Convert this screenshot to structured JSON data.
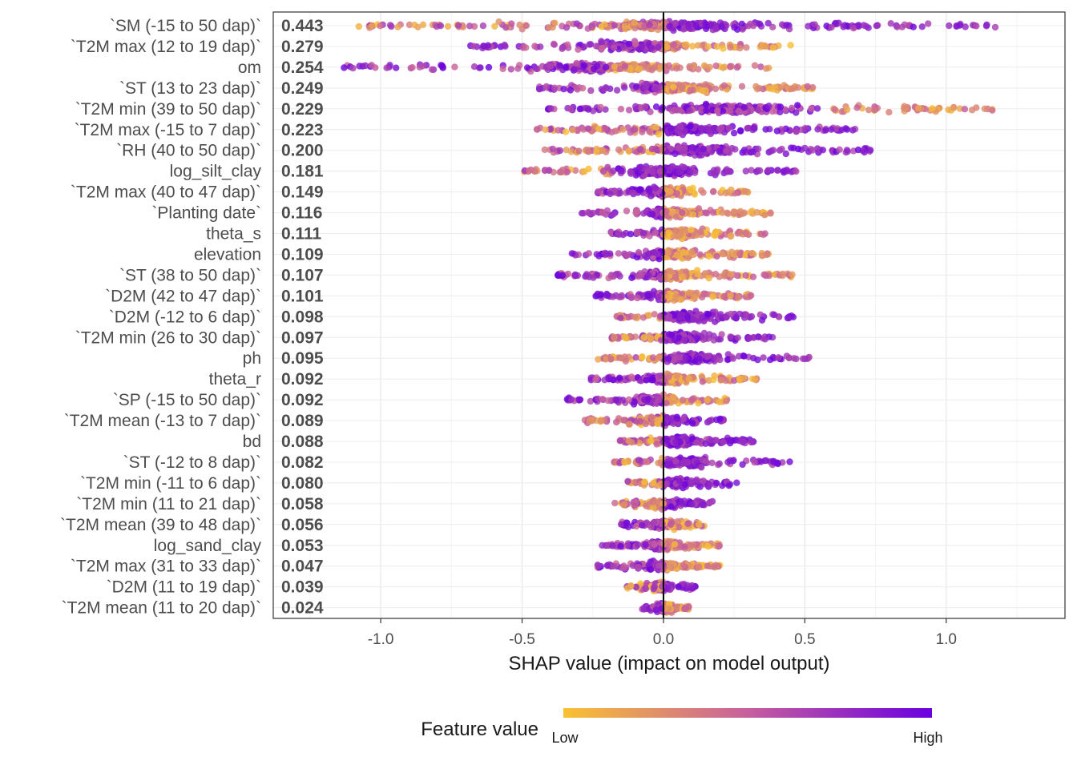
{
  "chart_data": {
    "type": "scatter",
    "subtype": "shap-beeswarm",
    "title": "",
    "xlabel": "SHAP value (impact on model output)",
    "ylabel": "",
    "xlim": [
      -1.38,
      1.42
    ],
    "xticks": [
      -1.0,
      -0.5,
      0.0,
      0.5,
      1.0
    ],
    "xtick_labels": [
      "-1.0",
      "-0.5",
      "0.0",
      "0.5",
      "1.0"
    ],
    "zero_line": true,
    "grid": true,
    "legend": {
      "title": "Feature value",
      "low_label": "Low",
      "high_label": "High",
      "placement": "bottom",
      "low_color": "#f9c232",
      "mid_color": "#c75f9e",
      "high_color": "#6a00e0"
    },
    "features": [
      {
        "name": "`SM  (-15 to 50 dap)`",
        "mean_abs_shap": "0.443",
        "range": [
          -1.08,
          1.18
        ],
        "dir": 1,
        "pos_start": 0.02
      },
      {
        "name": "`T2M max  (12 to 19 dap)`",
        "mean_abs_shap": "0.279",
        "range": [
          -0.69,
          0.45
        ],
        "dir": -1,
        "pos_start": 0.0
      },
      {
        "name": "om",
        "mean_abs_shap": "0.254",
        "range": [
          -1.13,
          0.38
        ],
        "dir": -1,
        "pos_start": -0.2
      },
      {
        "name": "`ST  (13 to 23 dap)`",
        "mean_abs_shap": "0.249",
        "range": [
          -0.45,
          0.55
        ],
        "dir": -1,
        "pos_start": 0.0
      },
      {
        "name": "`T2M min  (39 to 50 dap)`",
        "mean_abs_shap": "0.229",
        "range": [
          -0.41,
          1.18
        ],
        "dir": -1,
        "pos_start": 0.55
      },
      {
        "name": "`T2M max  (-15 to 7 dap)`",
        "mean_abs_shap": "0.223",
        "range": [
          -0.46,
          0.68
        ],
        "dir": 1,
        "pos_start": 0.0
      },
      {
        "name": "`RH  (40 to 50 dap)`",
        "mean_abs_shap": "0.200",
        "range": [
          -0.46,
          0.76
        ],
        "dir": 1,
        "pos_start": 0.0
      },
      {
        "name": "log_silt_clay",
        "mean_abs_shap": "0.181",
        "range": [
          -0.52,
          0.47
        ],
        "dir": 1,
        "pos_start": -0.17
      },
      {
        "name": "`T2M max  (40 to 47 dap)`",
        "mean_abs_shap": "0.149",
        "range": [
          -0.24,
          0.3
        ],
        "dir": -1,
        "pos_start": 0.0
      },
      {
        "name": "`Planting date`",
        "mean_abs_shap": "0.116",
        "range": [
          -0.29,
          0.38
        ],
        "dir": -1,
        "pos_start": 0.0
      },
      {
        "name": "theta_s",
        "mean_abs_shap": "0.111",
        "range": [
          -0.19,
          0.36
        ],
        "dir": -1,
        "pos_start": 0.0
      },
      {
        "name": "elevation",
        "mean_abs_shap": "0.109",
        "range": [
          -0.33,
          0.38
        ],
        "dir": -1,
        "pos_start": 0.0
      },
      {
        "name": "`ST  (38 to 50 dap)`",
        "mean_abs_shap": "0.107",
        "range": [
          -0.4,
          0.46
        ],
        "dir": -1,
        "pos_start": 0.0
      },
      {
        "name": "`D2M  (42 to 47 dap)`",
        "mean_abs_shap": "0.101",
        "range": [
          -0.24,
          0.31
        ],
        "dir": -1,
        "pos_start": 0.0
      },
      {
        "name": "`D2M  (-12 to 6 dap)`",
        "mean_abs_shap": "0.098",
        "range": [
          -0.17,
          0.46
        ],
        "dir": 1,
        "pos_start": 0.0
      },
      {
        "name": "`T2M min  (26 to 30 dap)`",
        "mean_abs_shap": "0.097",
        "range": [
          -0.19,
          0.39
        ],
        "dir": 1,
        "pos_start": 0.0
      },
      {
        "name": "ph",
        "mean_abs_shap": "0.095",
        "range": [
          -0.24,
          0.53
        ],
        "dir": 1,
        "pos_start": 0.0
      },
      {
        "name": "theta_r",
        "mean_abs_shap": "0.092",
        "range": [
          -0.26,
          0.33
        ],
        "dir": -1,
        "pos_start": 0.0
      },
      {
        "name": "`SP  (-15 to 50 dap)`",
        "mean_abs_shap": "0.092",
        "range": [
          -0.35,
          0.24
        ],
        "dir": -1,
        "pos_start": 0.0
      },
      {
        "name": "`T2M mean  (-13 to 7 dap)`",
        "mean_abs_shap": "0.089",
        "range": [
          -0.29,
          0.24
        ],
        "dir": 1,
        "pos_start": 0.0
      },
      {
        "name": "bd",
        "mean_abs_shap": "0.088",
        "range": [
          -0.17,
          0.32
        ],
        "dir": 1,
        "pos_start": 0.0
      },
      {
        "name": "`ST  (-12 to 8 dap)`",
        "mean_abs_shap": "0.082",
        "range": [
          -0.18,
          0.45
        ],
        "dir": 1,
        "pos_start": 0.0
      },
      {
        "name": "`T2M min  (-11 to 6 dap)`",
        "mean_abs_shap": "0.080",
        "range": [
          -0.13,
          0.26
        ],
        "dir": 1,
        "pos_start": 0.0
      },
      {
        "name": "`T2M min  (11 to 21 dap)`",
        "mean_abs_shap": "0.058",
        "range": [
          -0.18,
          0.18
        ],
        "dir": 1,
        "pos_start": 0.0
      },
      {
        "name": "`T2M mean  (39 to 48 dap)`",
        "mean_abs_shap": "0.056",
        "range": [
          -0.15,
          0.15
        ],
        "dir": -1,
        "pos_start": 0.0
      },
      {
        "name": "log_sand_clay",
        "mean_abs_shap": "0.053",
        "range": [
          -0.22,
          0.2
        ],
        "dir": -1,
        "pos_start": 0.0
      },
      {
        "name": "`T2M max  (31 to 33 dap)`",
        "mean_abs_shap": "0.047",
        "range": [
          -0.24,
          0.2
        ],
        "dir": -1,
        "pos_start": 0.0
      },
      {
        "name": "`D2M  (11 to 19 dap)`",
        "mean_abs_shap": "0.039",
        "range": [
          -0.13,
          0.12
        ],
        "dir": 1,
        "pos_start": 0.0
      },
      {
        "name": "`T2M mean  (11 to 20 dap)`",
        "mean_abs_shap": "0.024",
        "range": [
          -0.08,
          0.09
        ],
        "dir": -1,
        "pos_start": 0.0
      }
    ]
  }
}
